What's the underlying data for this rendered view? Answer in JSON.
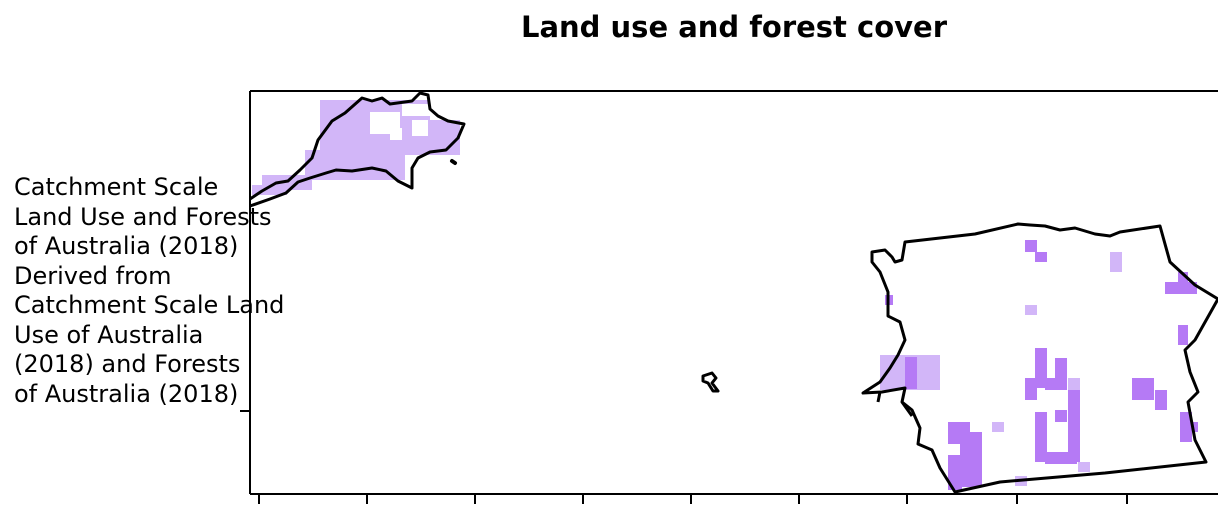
{
  "title": "Land use and forest cover",
  "side_label": " Catchment Scale\nLand Use and Forests\nof Australia (2018)\nDerived from\nCatchment Scale Land\nUse of Australia\n(2018) and Forests\nof Australia (2018)",
  "colors": {
    "light_violet": "#d2b6f8",
    "violet": "#b57af5",
    "outline": "#000000",
    "frame": "#000000"
  }
}
